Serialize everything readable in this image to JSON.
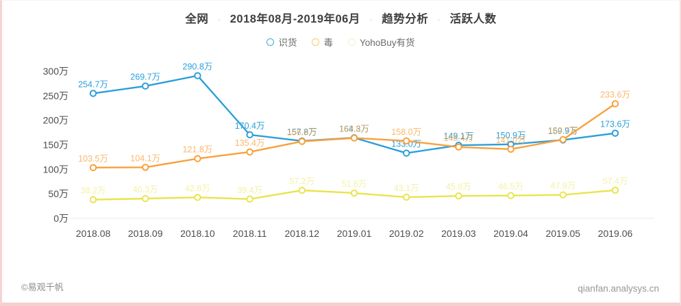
{
  "title": {
    "segments": [
      "全网",
      "2018年08月-2019年06月",
      "趋势分析",
      "活跃人数"
    ],
    "separator": "·"
  },
  "legend": [
    {
      "label": "识货",
      "ring_color": "#35aed3"
    },
    {
      "label": "毒",
      "ring_color": "#f3cf62"
    },
    {
      "label": "YohoBuy有货",
      "ring_color": "#f4efcd"
    }
  ],
  "footer": {
    "left": "©易观千帆",
    "right": "qianfan.analysys.cn"
  },
  "chart_data": {
    "type": "line",
    "title": "全网 2018年08月-2019年06月 趋势分析 活跃人数",
    "categories": [
      "2018.08",
      "2018.09",
      "2018.10",
      "2018.11",
      "2018.12",
      "2019.01",
      "2019.02",
      "2019.03",
      "2019.04",
      "2019.05",
      "2019.06"
    ],
    "unit": "万",
    "ylim": [
      0,
      300
    ],
    "y_ticks": [
      0,
      50,
      100,
      150,
      200,
      250,
      300
    ],
    "y_tick_labels": [
      "0万",
      "50万",
      "100万",
      "150万",
      "200万",
      "250万",
      "300万"
    ],
    "grid": false,
    "legend_position": "top",
    "series": [
      {
        "name": "识货",
        "color": "#2b9fd9",
        "values": [
          254.7,
          269.7,
          290.8,
          170.4,
          157.8,
          164.3,
          133.0,
          149.1,
          150.9,
          159.9,
          173.6
        ],
        "labels": [
          "254.7万",
          "269.7万",
          "290.8万",
          "170.4万",
          "157.8万",
          "164.3万",
          "133.0万",
          "149.1万",
          "150.9万",
          "159.9万",
          "173.6万"
        ],
        "label_opacity": 1
      },
      {
        "name": "毒",
        "color": "#f9a03a",
        "values": [
          103.5,
          104.1,
          121.8,
          135.4,
          156.9,
          163.8,
          158.0,
          145.4,
          141.0,
          160.7,
          233.6
        ],
        "labels": [
          "103.5万",
          "104.1万",
          "121.8万",
          "135.4万",
          "156.9万",
          "163.8万",
          "158.0万",
          "145.4万",
          "141.0万",
          "160.7万",
          "233.6万"
        ],
        "label_opacity": 0.75
      },
      {
        "name": "YohoBuy有货",
        "color": "#e9e44c",
        "values": [
          38.2,
          40.3,
          42.8,
          39.4,
          57.2,
          51.6,
          43.1,
          45.8,
          46.5,
          47.9,
          57.4
        ],
        "labels": [
          "38.2万",
          "40.3万",
          "42.8万",
          "39.4万",
          "57.2万",
          "51.6万",
          "43.1万",
          "45.8万",
          "46.5万",
          "47.9万",
          "57.4万"
        ],
        "label_opacity": 0.5
      }
    ]
  }
}
